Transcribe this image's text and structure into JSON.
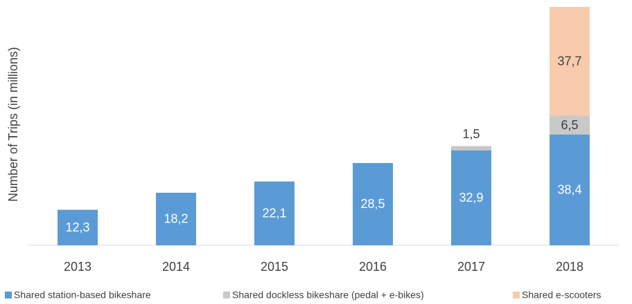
{
  "chart_data": {
    "type": "stacked_bar",
    "y_label": "Number of Trips (in millions)",
    "categories": [
      "2013",
      "2014",
      "2015",
      "2016",
      "2017",
      "2018"
    ],
    "series": [
      {
        "name": "Shared station-based bikeshare",
        "color": "#5b9bd5",
        "values": [
          12.3,
          18.2,
          22.1,
          28.5,
          32.9,
          38.4
        ],
        "value_labels": [
          "12,3",
          "18,2",
          "22,1",
          "28,5",
          "32,9",
          "38,4"
        ]
      },
      {
        "name": "Shared dockless bikeshare (pedal + e-bikes)",
        "color": "#c9c9c9",
        "values": [
          null,
          null,
          null,
          null,
          1.5,
          6.5
        ],
        "value_labels": [
          null,
          null,
          null,
          null,
          "1,5",
          "6,5"
        ]
      },
      {
        "name": "Shared e-scooters",
        "color": "#f8cbad",
        "values": [
          null,
          null,
          null,
          null,
          null,
          37.7
        ],
        "value_labels": [
          null,
          null,
          null,
          null,
          null,
          "37,7"
        ]
      }
    ],
    "ylim": [
      0,
      82.6
    ]
  }
}
